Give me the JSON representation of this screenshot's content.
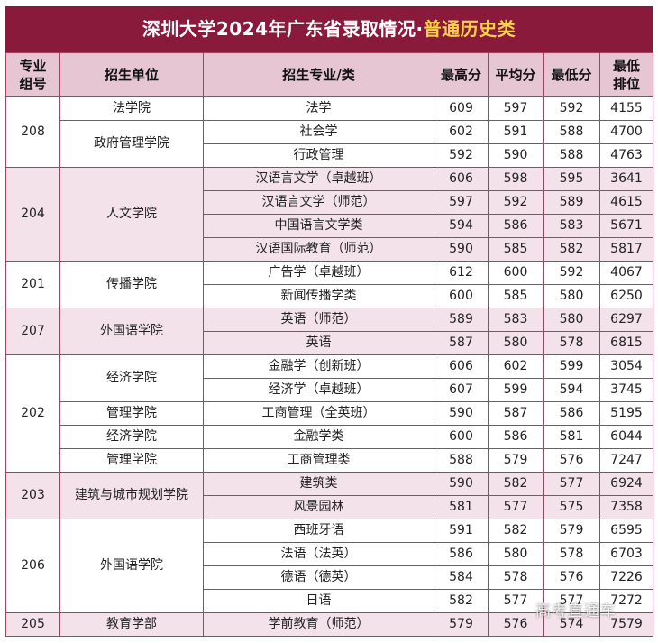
{
  "title_main": "深圳大学2024年广东省录取情况·",
  "title_highlight": "普通历史类",
  "headers": {
    "group_line1": "专业",
    "group_line2": "组号",
    "unit": "招生单位",
    "major": "招生专业/类",
    "max": "最高分",
    "avg": "平均分",
    "min": "最低分",
    "rank_line1": "最低",
    "rank_line2": "排位"
  },
  "groups": [
    {
      "code": "208",
      "units": [
        {
          "name": "法学院",
          "majors": [
            {
              "major": "法学",
              "max": "609",
              "avg": "597",
              "min": "592",
              "rank": "4155"
            }
          ]
        },
        {
          "name": "政府管理学院",
          "majors": [
            {
              "major": "社会学",
              "max": "602",
              "avg": "591",
              "min": "588",
              "rank": "4700"
            },
            {
              "major": "行政管理",
              "max": "592",
              "avg": "590",
              "min": "588",
              "rank": "4763"
            }
          ]
        }
      ]
    },
    {
      "code": "204",
      "units": [
        {
          "name": "人文学院",
          "majors": [
            {
              "major": "汉语言文学（卓越班）",
              "max": "606",
              "avg": "598",
              "min": "595",
              "rank": "3641"
            },
            {
              "major": "汉语言文学（师范）",
              "max": "597",
              "avg": "592",
              "min": "589",
              "rank": "4615"
            },
            {
              "major": "中国语言文学类",
              "max": "594",
              "avg": "586",
              "min": "583",
              "rank": "5671"
            },
            {
              "major": "汉语国际教育（师范）",
              "max": "590",
              "avg": "585",
              "min": "582",
              "rank": "5817"
            }
          ]
        }
      ]
    },
    {
      "code": "201",
      "units": [
        {
          "name": "传播学院",
          "majors": [
            {
              "major": "广告学（卓越班）",
              "max": "612",
              "avg": "600",
              "min": "592",
              "rank": "4067"
            },
            {
              "major": "新闻传播学类",
              "max": "600",
              "avg": "585",
              "min": "580",
              "rank": "6250"
            }
          ]
        }
      ]
    },
    {
      "code": "207",
      "units": [
        {
          "name": "外国语学院",
          "majors": [
            {
              "major": "英语（师范）",
              "max": "589",
              "avg": "583",
              "min": "580",
              "rank": "6297"
            },
            {
              "major": "英语",
              "max": "587",
              "avg": "580",
              "min": "578",
              "rank": "6815"
            }
          ]
        }
      ]
    },
    {
      "code": "202",
      "units": [
        {
          "name": "经济学院",
          "majors": [
            {
              "major": "金融学（创新班）",
              "max": "606",
              "avg": "602",
              "min": "599",
              "rank": "3054"
            },
            {
              "major": "经济学（卓越班）",
              "max": "607",
              "avg": "599",
              "min": "594",
              "rank": "3745"
            }
          ]
        },
        {
          "name": "管理学院",
          "majors": [
            {
              "major": "工商管理（全英班）",
              "max": "590",
              "avg": "587",
              "min": "586",
              "rank": "5195"
            }
          ]
        },
        {
          "name": "经济学院",
          "majors": [
            {
              "major": "金融学类",
              "max": "600",
              "avg": "586",
              "min": "581",
              "rank": "6044"
            }
          ]
        },
        {
          "name": "管理学院",
          "majors": [
            {
              "major": "工商管理类",
              "max": "588",
              "avg": "579",
              "min": "576",
              "rank": "7247"
            }
          ]
        }
      ]
    },
    {
      "code": "203",
      "units": [
        {
          "name": "建筑与城市规划学院",
          "majors": [
            {
              "major": "建筑类",
              "max": "590",
              "avg": "582",
              "min": "577",
              "rank": "6924"
            },
            {
              "major": "风景园林",
              "max": "581",
              "avg": "577",
              "min": "575",
              "rank": "7358"
            }
          ]
        }
      ]
    },
    {
      "code": "206",
      "units": [
        {
          "name": "外国语学院",
          "majors": [
            {
              "major": "西班牙语",
              "max": "591",
              "avg": "582",
              "min": "579",
              "rank": "6595"
            },
            {
              "major": "法语（法英）",
              "max": "586",
              "avg": "580",
              "min": "578",
              "rank": "6703"
            },
            {
              "major": "德语（德英）",
              "max": "584",
              "avg": "578",
              "min": "576",
              "rank": "7226"
            },
            {
              "major": "日语",
              "max": "582",
              "avg": "577",
              "min": "577",
              "rank": "7272"
            }
          ]
        }
      ]
    },
    {
      "code": "205",
      "units": [
        {
          "name": "教育学部",
          "majors": [
            {
              "major": "学前教育（师范）",
              "max": "579",
              "avg": "576",
              "min": "574",
              "rank": "7579"
            }
          ]
        }
      ]
    }
  ],
  "watermark": "高考直通车"
}
